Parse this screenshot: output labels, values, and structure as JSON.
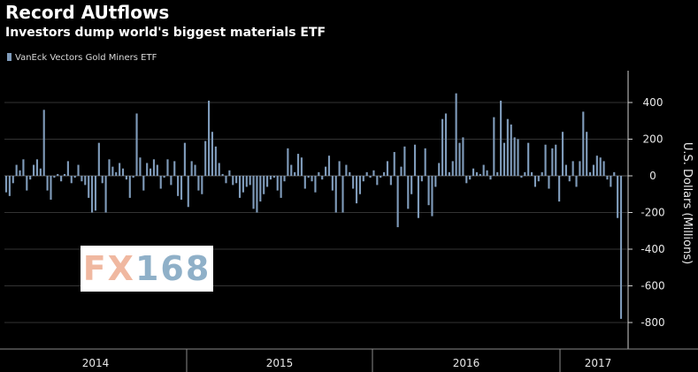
{
  "header": {
    "title": "Record AUtflows",
    "subtitle": "Investors dump world's biggest materials ETF"
  },
  "watermark": {
    "text_a": "FX",
    "text_b": "168"
  },
  "colors": {
    "bar": "#7f9bba",
    "background": "#000000",
    "grid": "#333333"
  },
  "chart_data": {
    "type": "bar",
    "title": "Record AUtflows",
    "subtitle": "Investors dump world's biggest materials ETF",
    "xlabel": "",
    "ylabel": "U.S. Dollars (Millions)",
    "ylim": [
      -900,
      600
    ],
    "yticks": [
      400,
      200,
      0,
      -200,
      -400,
      -600,
      -800
    ],
    "grid": true,
    "legend_position": "top-left",
    "x_period_labels": [
      "2014",
      "2015",
      "2016",
      "2017"
    ],
    "series": [
      {
        "name": "VanEck Vectors Gold Miners ETF",
        "color": "#7f9bba",
        "values": [
          -90,
          -110,
          -40,
          60,
          30,
          90,
          -80,
          -20,
          60,
          90,
          40,
          360,
          -80,
          -130,
          -10,
          10,
          -30,
          10,
          80,
          -40,
          -10,
          60,
          -30,
          -50,
          -120,
          -200,
          -190,
          180,
          -40,
          -200,
          90,
          50,
          20,
          70,
          40,
          -20,
          -120,
          -10,
          340,
          100,
          -80,
          70,
          40,
          90,
          60,
          -70,
          -10,
          90,
          -50,
          80,
          -110,
          -130,
          180,
          -170,
          80,
          60,
          -80,
          -100,
          190,
          410,
          240,
          160,
          70,
          10,
          -40,
          30,
          -50,
          -40,
          -120,
          -90,
          -60,
          -50,
          -180,
          -200,
          -140,
          -100,
          -60,
          -20,
          -10,
          -80,
          -120,
          -30,
          150,
          60,
          20,
          120,
          100,
          -70,
          -10,
          -30,
          -90,
          20,
          -20,
          50,
          110,
          -80,
          -200,
          80,
          -200,
          60,
          20,
          -70,
          -150,
          -100,
          -30,
          20,
          -10,
          30,
          -50,
          -10,
          20,
          80,
          -50,
          130,
          -280,
          50,
          160,
          -180,
          -100,
          170,
          -230,
          -30,
          150,
          -160,
          -220,
          -60,
          70,
          310,
          340,
          20,
          80,
          450,
          180,
          210,
          -40,
          -20,
          40,
          20,
          10,
          60,
          30,
          -20,
          320,
          20,
          410,
          180,
          310,
          280,
          210,
          200,
          -10,
          20,
          180,
          20,
          -60,
          -30,
          20,
          170,
          -70,
          150,
          170,
          -140,
          240,
          60,
          -30,
          80,
          -60,
          80,
          350,
          240,
          20,
          60,
          110,
          100,
          80,
          -20,
          -60,
          20,
          -230,
          -780
        ]
      }
    ]
  }
}
